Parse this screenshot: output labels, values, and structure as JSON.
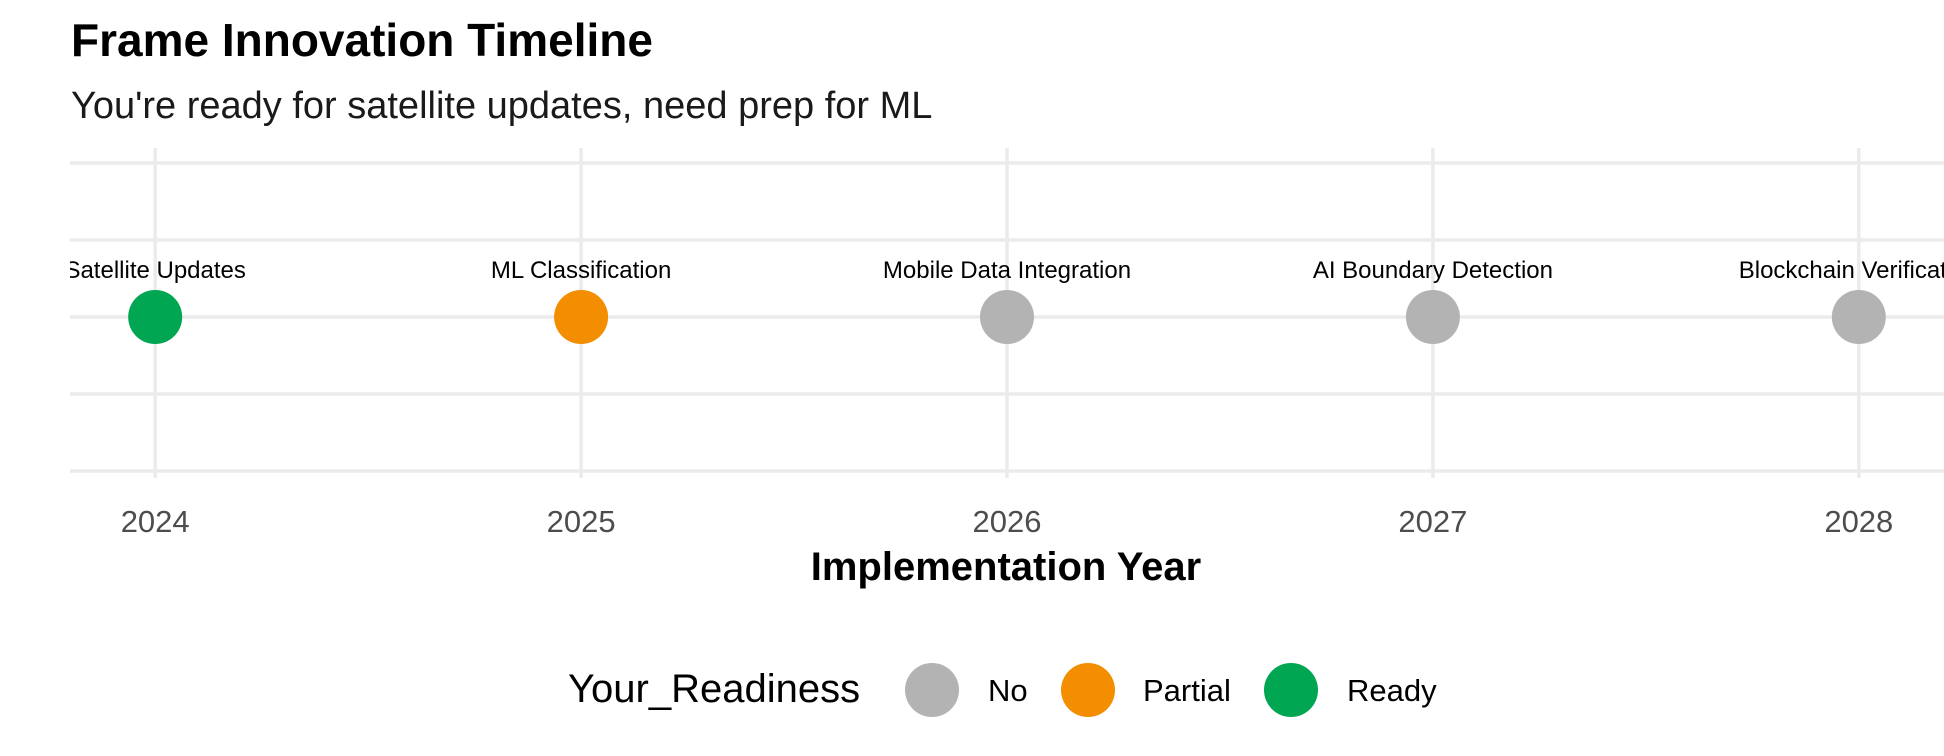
{
  "chart_data": {
    "type": "scatter",
    "title": "Frame Innovation Timeline",
    "subtitle": "You're ready for satellite updates, need prep for ML",
    "xlabel": "Implementation Year",
    "ylabel": "",
    "x_ticks": [
      "2024",
      "2025",
      "2026",
      "2027",
      "2028"
    ],
    "xlim": [
      2023.8,
      2028.2
    ],
    "grid": true,
    "points": [
      {
        "x": 2024,
        "label": "Satellite Updates",
        "readiness": "Ready"
      },
      {
        "x": 2025,
        "label": "ML Classification",
        "readiness": "Partial"
      },
      {
        "x": 2026,
        "label": "Mobile Data Integration",
        "readiness": "No"
      },
      {
        "x": 2027,
        "label": "AI Boundary Detection",
        "readiness": "No"
      },
      {
        "x": 2028,
        "label": "Blockchain Verification",
        "readiness": "No"
      }
    ],
    "legend": {
      "title": "Your_Readiness",
      "position": "bottom",
      "entries": [
        {
          "label": "No",
          "color": "#b3b3b3"
        },
        {
          "label": "Partial",
          "color": "#f28e00"
        },
        {
          "label": "Ready",
          "color": "#00a651"
        }
      ]
    }
  }
}
